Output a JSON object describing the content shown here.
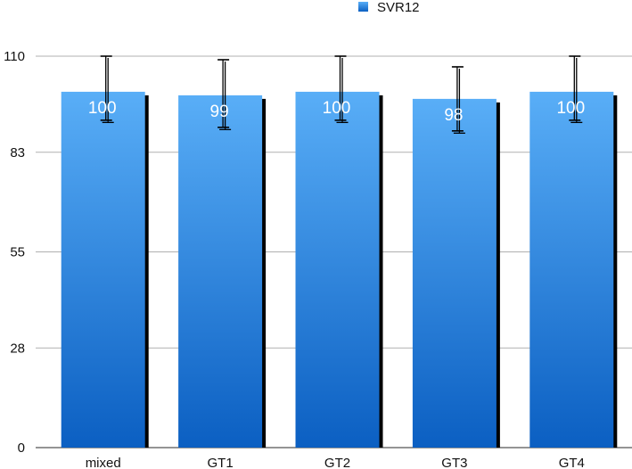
{
  "chart_data": {
    "type": "bar",
    "categories": [
      "mixed",
      "GT1",
      "GT2",
      "GT3",
      "GT4"
    ],
    "series": [
      {
        "name": "SVR12",
        "values": [
          100,
          99,
          100,
          98,
          100
        ],
        "error_upper": [
          110,
          109,
          110,
          107,
          110
        ],
        "error_lower": [
          92,
          90,
          92,
          89,
          92
        ]
      }
    ],
    "data_labels": [
      "100",
      "99",
      "100",
      "98",
      "100"
    ],
    "y_ticks": [
      0,
      28,
      55,
      83,
      110
    ],
    "y_tick_labels": [
      "0",
      "28",
      "55",
      "83",
      "110"
    ],
    "ylim": [
      0,
      110
    ],
    "grid": true,
    "legend_position": "top",
    "colors": {
      "bar_top": "#59aef7",
      "bar_bottom": "#0b5fc2",
      "bar_shadow": "#000000",
      "grid": "#b0b0b0",
      "axis": "#555555",
      "error_bar": "#000000"
    }
  }
}
